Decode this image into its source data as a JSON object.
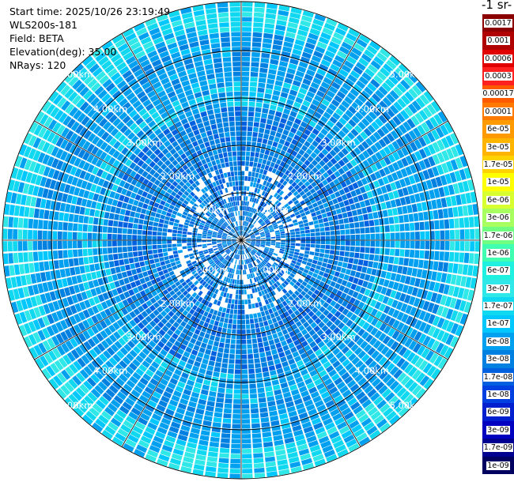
{
  "info": {
    "start_time": "Start time: 2025/10/26 23:19:49",
    "site": "WLS200s-181",
    "field": "Field: BETA",
    "elevation": "Elevation(deg): 35.00",
    "nrays": "NRays: 120"
  },
  "colorbar": {
    "title": "-1 sr-",
    "labels": [
      "0.0017",
      "0.001",
      "0.0006",
      "0.0003",
      "0.00017",
      "0.0001",
      "6e-05",
      "3e-05",
      "1.7e-05",
      "1e-05",
      "6e-06",
      "3e-06",
      "1.7e-06",
      "1e-06",
      "6e-07",
      "3e-07",
      "1.7e-07",
      "1e-07",
      "6e-08",
      "3e-08",
      "1.7e-08",
      "1e-08",
      "6e-09",
      "3e-09",
      "1.7e-09",
      "1e-09"
    ],
    "colors": [
      "#8b0000",
      "#b00000",
      "#e00000",
      "#ff2020",
      "#ff5a00",
      "#ff7a00",
      "#ff9a00",
      "#ffb400",
      "#ffd200",
      "#ffff00",
      "#d8ff30",
      "#a8ff60",
      "#70ff80",
      "#40ffb0",
      "#20f0e0",
      "#30e8e8",
      "#10d8f0",
      "#00c8ff",
      "#00a0f0",
      "#0080e0",
      "#0060e0",
      "#0040e0",
      "#0020d0",
      "#0000c0",
      "#000090",
      "#000060"
    ]
  },
  "range_labels": [
    "1.00km",
    "2.00km",
    "3.00km",
    "4.00km",
    "5.00km"
  ],
  "nrays": 120,
  "field_colors": [
    "#30e8e8",
    "#10d8f0",
    "#00c8ff",
    "#00a0f0",
    "#0080e0",
    "#0060e0",
    "#0040e0"
  ]
}
